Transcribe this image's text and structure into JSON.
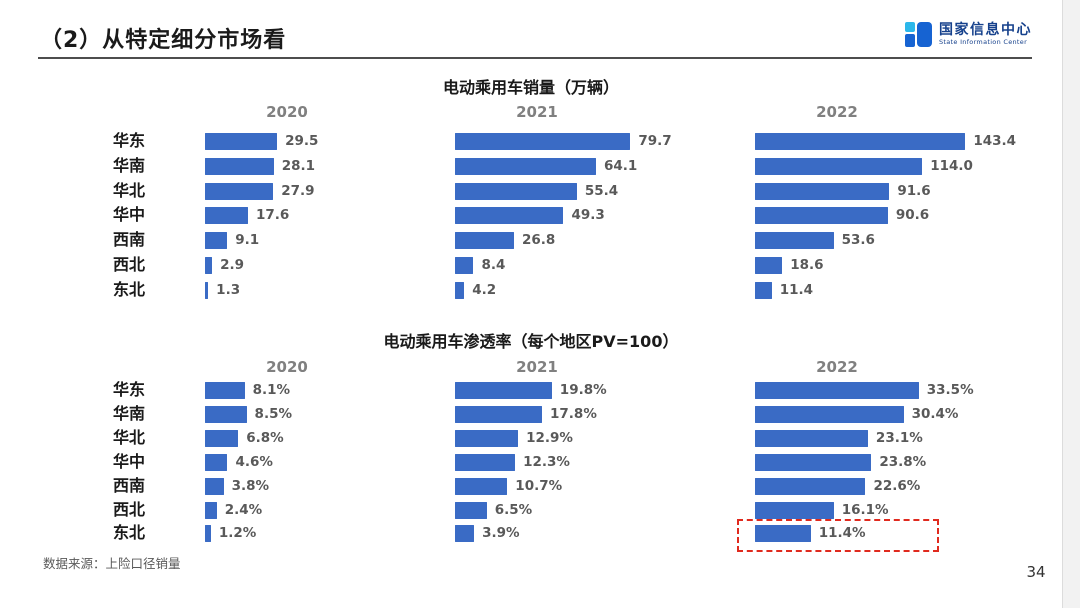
{
  "page": {
    "title": "（2）从特定细分市场看",
    "page_number": "34",
    "source_note": "数据来源：上险口径销量"
  },
  "logo": {
    "name_cn": "国家信息中心",
    "name_en": "State Information Center"
  },
  "colors": {
    "bar_blue": "#3a6bc5",
    "year_header_gray": "#808080",
    "value_label_gray": "#595959",
    "highlight_red": "#e02a1e",
    "logo_navy": "#16418c",
    "logo_cyan": "#2bb7ea",
    "logo_blue": "#1663d2"
  },
  "chart_data": [
    {
      "type": "bar",
      "orientation": "horizontal",
      "title": "电动乘用车销量（万辆）",
      "categories": [
        "华东",
        "华南",
        "华北",
        "华中",
        "西南",
        "西北",
        "东北"
      ],
      "series": [
        {
          "name": "2020",
          "values": [
            29.5,
            28.1,
            27.9,
            17.6,
            9.1,
            2.9,
            1.3
          ],
          "xlim": [
            0,
            90
          ]
        },
        {
          "name": "2021",
          "values": [
            79.7,
            64.1,
            55.4,
            49.3,
            26.8,
            8.4,
            4.2
          ],
          "xlim": [
            0,
            100
          ]
        },
        {
          "name": "2022",
          "values": [
            143.4,
            114.0,
            91.6,
            90.6,
            53.6,
            18.6,
            11.4
          ],
          "xlim": [
            0,
            150
          ]
        }
      ],
      "value_suffix": "",
      "grid": false,
      "legend": "none"
    },
    {
      "type": "bar",
      "orientation": "horizontal",
      "title": "电动乘用车渗透率（每个地区PV=100）",
      "categories": [
        "华东",
        "华南",
        "华北",
        "华中",
        "西南",
        "西北",
        "东北"
      ],
      "series": [
        {
          "name": "2020",
          "values": [
            8.1,
            8.5,
            6.8,
            4.6,
            3.8,
            2.4,
            1.2
          ],
          "xlim": [
            0,
            45
          ]
        },
        {
          "name": "2021",
          "values": [
            19.8,
            17.8,
            12.9,
            12.3,
            10.7,
            6.5,
            3.9
          ],
          "xlim": [
            0,
            45
          ]
        },
        {
          "name": "2022",
          "values": [
            33.5,
            30.4,
            23.1,
            23.8,
            22.6,
            16.1,
            11.4
          ],
          "xlim": [
            0,
            45
          ]
        }
      ],
      "value_suffix": "%",
      "annotation": {
        "type": "red-dashed-box",
        "series": "2022",
        "category": "东北"
      },
      "grid": false,
      "legend": "none"
    }
  ]
}
